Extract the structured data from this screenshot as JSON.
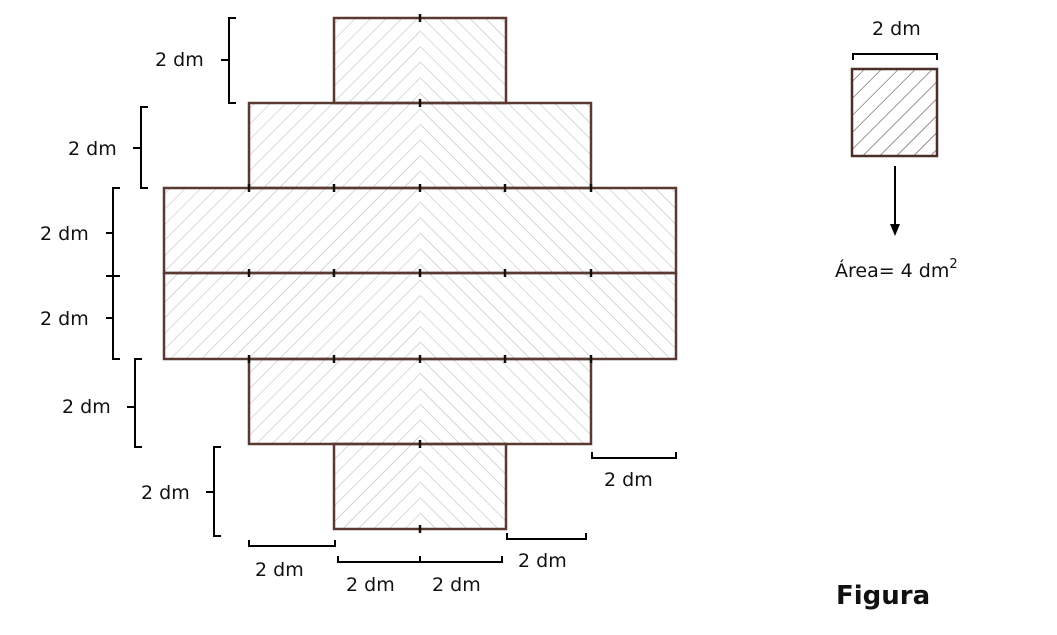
{
  "dimension_label": "2 dm",
  "unit_square": {
    "side_label": "2 dm",
    "area_prefix": "Área= 4 dm",
    "area_exponent": "2"
  },
  "caption": "Figura",
  "colors": {
    "outline": "#5a3a30",
    "hatch": "#b5b5b5",
    "unit_hatch": "#4a2f28",
    "bracket": "#000000",
    "text": "#111111"
  }
}
